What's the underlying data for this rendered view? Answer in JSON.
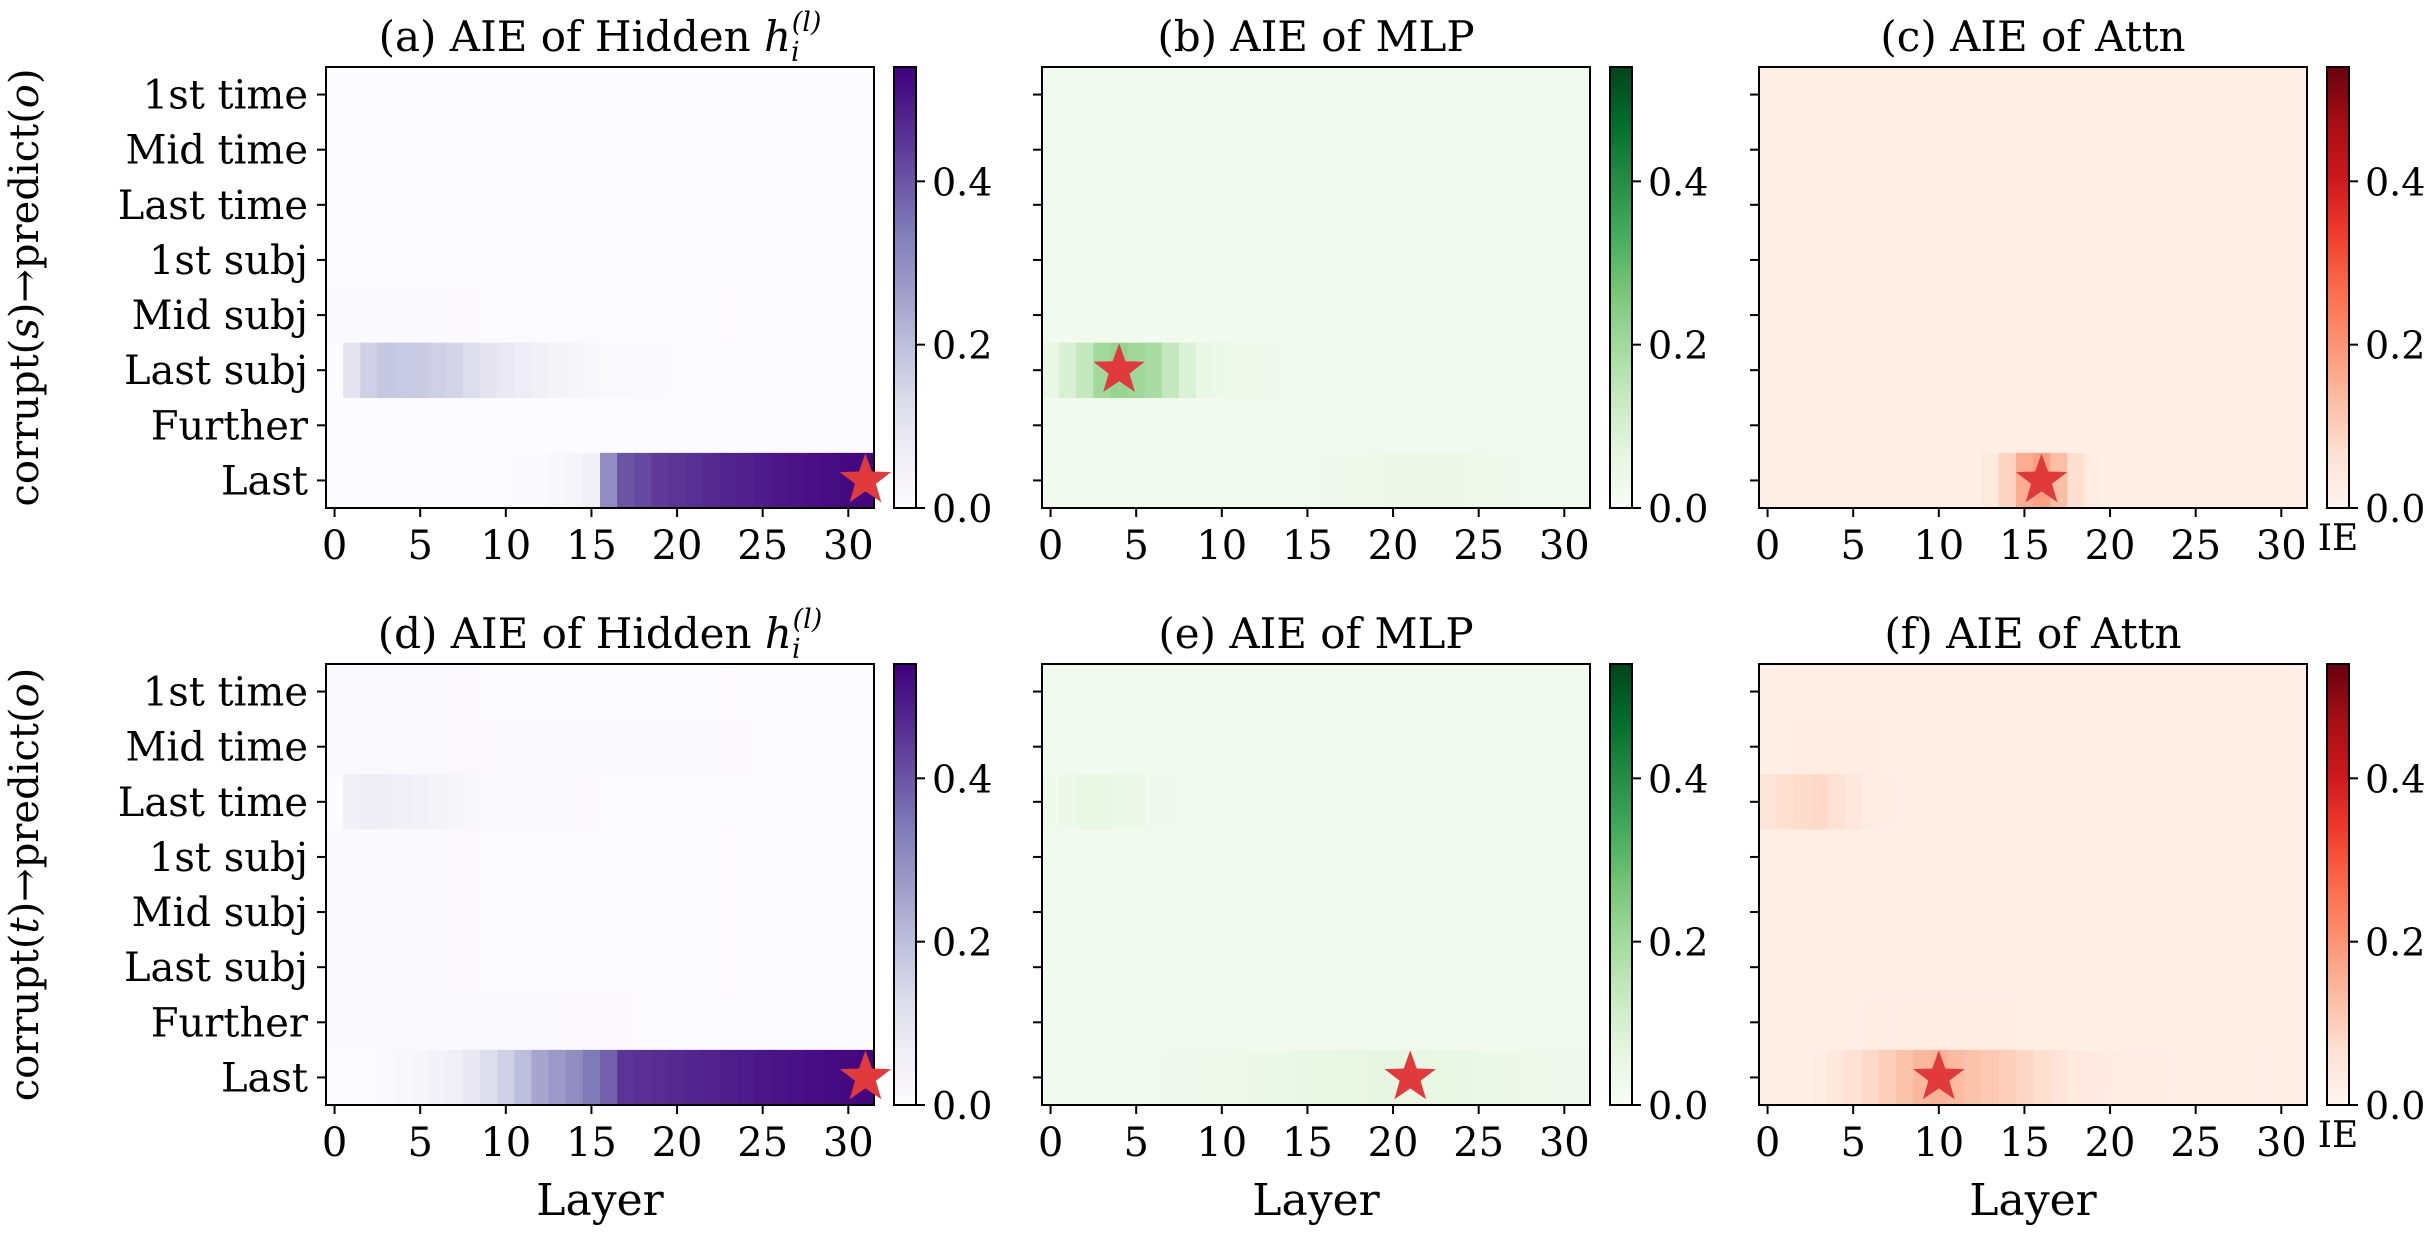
{
  "row_labels": [
    "corrupt(s)→predict(o)",
    "corrupt(t)→predict(o)"
  ],
  "row_label_parts": [
    [
      "corrupt(",
      "s",
      ")→predict(",
      "o",
      ")"
    ],
    [
      "corrupt(",
      "t",
      ")→predict(",
      "o",
      ")"
    ]
  ],
  "xlabel": "Layer",
  "colorbar_label": "IE",
  "tokens": [
    "1st time",
    "Mid time",
    "Last time",
    "1st subj",
    "Mid subj",
    "Last subj",
    "Further",
    "Last"
  ],
  "x_ticks": [
    0,
    5,
    10,
    15,
    20,
    25,
    30
  ],
  "cbar_ticks": [
    "0.0",
    "0.2",
    "0.4"
  ],
  "colormaps": {
    "Purples": [
      "#fcfbfd",
      "#efedf5",
      "#dadaeb",
      "#bcbddc",
      "#9e9ac8",
      "#807dba",
      "#6a51a3",
      "#54278f",
      "#3f007d"
    ],
    "Greens": [
      "#f7fcf5",
      "#e5f5e0",
      "#c7e9c0",
      "#a1d99b",
      "#74c476",
      "#41ab5d",
      "#238b45",
      "#006d2c",
      "#00441b"
    ],
    "Reds": [
      "#fff5f0",
      "#fee0d2",
      "#fcbba1",
      "#fc9272",
      "#fb6a4a",
      "#ef3b2c",
      "#cb181d",
      "#a50f15",
      "#67000d"
    ]
  },
  "chart_data": [
    {
      "type": "heatmap",
      "title_prefix": "(a) AIE of Hidden ",
      "title_math": "hi(l)",
      "colormap": "Purples",
      "vmin": 0.0,
      "vmax": 0.54,
      "x_range": [
        0,
        31
      ],
      "star": {
        "layer": 31,
        "token": "Last"
      },
      "show_ylabels": true,
      "show_xlabel": false,
      "show_cbar_label": false,
      "rows": {
        "Mid subj": {
          "pts": [
            [
              0,
              0.01
            ],
            [
              31,
              0.0
            ]
          ],
          "from": 0,
          "to": 31
        },
        "Last subj": {
          "pts": [
            [
              1,
              0.1
            ],
            [
              2,
              0.16
            ],
            [
              3,
              0.18
            ],
            [
              5,
              0.17
            ],
            [
              7,
              0.15
            ],
            [
              9,
              0.1
            ],
            [
              11,
              0.07
            ],
            [
              13,
              0.04
            ],
            [
              15,
              0.02
            ],
            [
              18,
              0.01
            ],
            [
              23,
              0.0
            ]
          ],
          "from": 1,
          "to": 23
        },
        "Last": {
          "pts": [
            [
              7,
              0.0
            ],
            [
              12,
              0.01
            ],
            [
              14,
              0.03
            ],
            [
              15,
              0.06
            ],
            [
              16,
              0.3
            ],
            [
              17,
              0.4
            ],
            [
              19,
              0.44
            ],
            [
              22,
              0.47
            ],
            [
              26,
              0.5
            ],
            [
              31,
              0.53
            ]
          ],
          "from": 0,
          "to": 31
        }
      }
    },
    {
      "type": "heatmap",
      "title_prefix": "(b) AIE of MLP",
      "title_math": "",
      "colormap": "Greens",
      "vmin": 0.0,
      "vmax": 0.54,
      "x_range": [
        0,
        31
      ],
      "star": {
        "layer": 4,
        "token": "Last subj"
      },
      "show_ylabels": false,
      "show_xlabel": false,
      "show_cbar_label": false,
      "base": 0.02,
      "rows": {
        "Last subj": {
          "pts": [
            [
              0,
              0.05
            ],
            [
              2,
              0.14
            ],
            [
              3,
              0.2
            ],
            [
              4,
              0.22
            ],
            [
              6,
              0.19
            ],
            [
              7,
              0.14
            ],
            [
              8,
              0.09
            ],
            [
              9,
              0.05
            ],
            [
              11,
              0.03
            ],
            [
              15,
              0.02
            ]
          ],
          "from": 0,
          "to": 15
        },
        "Last": {
          "pts": [
            [
              14,
              0.02
            ],
            [
              18,
              0.03
            ],
            [
              21,
              0.04
            ],
            [
              24,
              0.035
            ],
            [
              27,
              0.025
            ],
            [
              30,
              0.02
            ]
          ],
          "from": 14,
          "to": 30
        }
      }
    },
    {
      "type": "heatmap",
      "title_prefix": "(c) AIE of Attn",
      "title_math": "",
      "colormap": "Reds",
      "vmin": 0.0,
      "vmax": 0.54,
      "x_range": [
        0,
        31
      ],
      "star": {
        "layer": 16,
        "token": "Last"
      },
      "show_ylabels": false,
      "show_xlabel": false,
      "show_cbar_label": true,
      "base": 0.02,
      "rows": {
        "Last": {
          "pts": [
            [
              12,
              0.02
            ],
            [
              13,
              0.04
            ],
            [
              14,
              0.09
            ],
            [
              15,
              0.16
            ],
            [
              16,
              0.18
            ],
            [
              17,
              0.13
            ],
            [
              18,
              0.07
            ],
            [
              19,
              0.03
            ],
            [
              20,
              0.02
            ]
          ],
          "from": 12,
          "to": 20
        }
      }
    },
    {
      "type": "heatmap",
      "title_prefix": "(d) AIE of Hidden ",
      "title_math": "hi(l)",
      "colormap": "Purples",
      "vmin": 0.0,
      "vmax": 0.54,
      "x_range": [
        0,
        31
      ],
      "star": {
        "layer": 31,
        "token": "Last"
      },
      "show_ylabels": true,
      "show_xlabel": true,
      "show_cbar_label": false,
      "rows": {
        "1st time": {
          "pts": [
            [
              0,
              0.01
            ],
            [
              31,
              0.0
            ]
          ],
          "from": 0,
          "to": 31
        },
        "Mid time": {
          "pts": [
            [
              0,
              0.015
            ],
            [
              31,
              0.005
            ]
          ],
          "from": 0,
          "to": 31
        },
        "Last time": {
          "pts": [
            [
              1,
              0.06
            ],
            [
              2,
              0.07
            ],
            [
              4,
              0.06
            ],
            [
              6,
              0.04
            ],
            [
              8,
              0.02
            ],
            [
              11,
              0.01
            ],
            [
              20,
              0.005
            ],
            [
              31,
              0.0
            ]
          ],
          "from": 1,
          "to": 31
        },
        "1st subj": {
          "pts": [
            [
              0,
              0.01
            ],
            [
              31,
              0.0
            ]
          ],
          "from": 0,
          "to": 31
        },
        "Mid subj": {
          "pts": [
            [
              0,
              0.01
            ],
            [
              31,
              0.0
            ]
          ],
          "from": 0,
          "to": 31
        },
        "Last subj": {
          "pts": [
            [
              0,
              0.01
            ],
            [
              31,
              0.0
            ]
          ],
          "from": 0,
          "to": 31
        },
        "Further": {
          "pts": [
            [
              0,
              0.01
            ],
            [
              31,
              0.005
            ]
          ],
          "from": 0,
          "to": 31
        },
        "Last": {
          "pts": [
            [
              2,
              0.0
            ],
            [
              5,
              0.03
            ],
            [
              7,
              0.06
            ],
            [
              9,
              0.12
            ],
            [
              11,
              0.2
            ],
            [
              12,
              0.25
            ],
            [
              14,
              0.3
            ],
            [
              16,
              0.38
            ],
            [
              17,
              0.45
            ],
            [
              20,
              0.47
            ],
            [
              25,
              0.5
            ],
            [
              31,
              0.53
            ]
          ],
          "from": 1,
          "to": 31
        }
      }
    },
    {
      "type": "heatmap",
      "title_prefix": "(e) AIE of MLP",
      "title_math": "",
      "colormap": "Greens",
      "vmin": 0.0,
      "vmax": 0.54,
      "x_range": [
        0,
        31
      ],
      "star": {
        "layer": 21,
        "token": "Last"
      },
      "show_ylabels": false,
      "show_xlabel": true,
      "show_cbar_label": false,
      "base": 0.02,
      "rows": {
        "Last time": {
          "pts": [
            [
              0,
              0.03
            ],
            [
              2,
              0.05
            ],
            [
              4,
              0.045
            ],
            [
              6,
              0.03
            ],
            [
              8,
              0.02
            ]
          ],
          "from": 0,
          "to": 8
        },
        "Last": {
          "pts": [
            [
              4,
              0.02
            ],
            [
              10,
              0.03
            ],
            [
              13,
              0.04
            ],
            [
              16,
              0.05
            ],
            [
              19,
              0.06
            ],
            [
              22,
              0.055
            ],
            [
              26,
              0.04
            ],
            [
              30,
              0.025
            ]
          ],
          "from": 4,
          "to": 31
        }
      }
    },
    {
      "type": "heatmap",
      "title_prefix": "(f) AIE of Attn",
      "title_math": "",
      "colormap": "Reds",
      "vmin": 0.0,
      "vmax": 0.54,
      "x_range": [
        0,
        31
      ],
      "star": {
        "layer": 10,
        "token": "Last"
      },
      "show_ylabels": false,
      "show_xlabel": true,
      "show_cbar_label": true,
      "base": 0.02,
      "rows": {
        "Mid time": {
          "pts": [
            [
              0,
              0.02
            ],
            [
              3,
              0.03
            ],
            [
              6,
              0.025
            ],
            [
              8,
              0.02
            ]
          ],
          "from": 0,
          "to": 8
        },
        "Last time": {
          "pts": [
            [
              0,
              0.05
            ],
            [
              1,
              0.07
            ],
            [
              3,
              0.08
            ],
            [
              4,
              0.06
            ],
            [
              6,
              0.03
            ],
            [
              8,
              0.02
            ]
          ],
          "from": 0,
          "to": 8
        },
        "Further": {
          "pts": [
            [
              3,
              0.02
            ],
            [
              8,
              0.03
            ],
            [
              12,
              0.03
            ],
            [
              16,
              0.02
            ]
          ],
          "from": 3,
          "to": 16
        },
        "Last": {
          "pts": [
            [
              3,
              0.03
            ],
            [
              5,
              0.06
            ],
            [
              7,
              0.1
            ],
            [
              9,
              0.14
            ],
            [
              10,
              0.15
            ],
            [
              12,
              0.12
            ],
            [
              14,
              0.1
            ],
            [
              16,
              0.07
            ],
            [
              18,
              0.04
            ],
            [
              22,
              0.025
            ],
            [
              31,
              0.02
            ]
          ],
          "from": 3,
          "to": 31
        }
      }
    }
  ]
}
